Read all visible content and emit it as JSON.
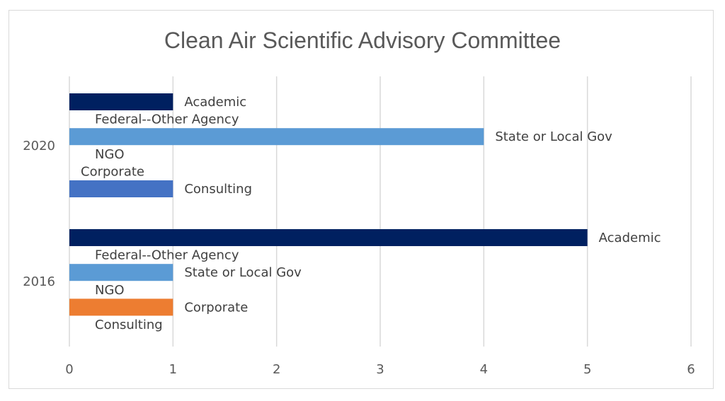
{
  "chart_data": {
    "type": "bar",
    "orientation": "horizontal",
    "title": "Clean Air Scientific Advisory Committee",
    "xlabel": "",
    "ylabel": "",
    "xlim": [
      0,
      6
    ],
    "x_ticks": [
      "0",
      "1",
      "2",
      "3",
      "4",
      "5",
      "6"
    ],
    "grid": true,
    "legend": "none",
    "categories": [
      "2020",
      "2016"
    ],
    "series": [
      {
        "name": "Academic",
        "color": "#002060",
        "values": [
          1,
          5
        ]
      },
      {
        "name": "Federal--Other Agency",
        "color": "#2E75B6",
        "values": [
          0,
          0
        ]
      },
      {
        "name": "State or Local Gov",
        "color": "#5B9BD5",
        "values": [
          4,
          1
        ]
      },
      {
        "name": "NGO",
        "color": "#8FAADC",
        "values": [
          0,
          0
        ]
      },
      {
        "name": "Corporate",
        "color": "#ED7D31",
        "values": [
          0,
          1
        ]
      },
      {
        "name": "Consulting",
        "color": "#4472C4",
        "values": [
          1,
          0
        ]
      }
    ]
  }
}
